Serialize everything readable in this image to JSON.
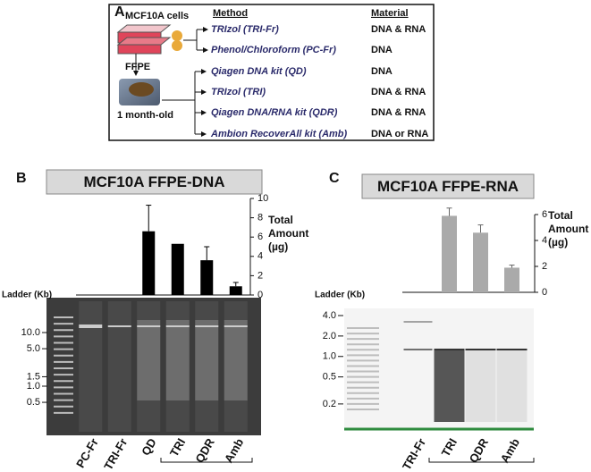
{
  "panel_a": {
    "label": "A",
    "source": "MCF10A cells",
    "ffpe": "FFPE",
    "age": "1 month-old",
    "method_header": "Method",
    "material_header": "Material",
    "rows": [
      {
        "method": "TRIzol (TRI-Fr)",
        "material": "DNA & RNA"
      },
      {
        "method": "Phenol/Chloroform (PC-Fr)",
        "material": "DNA"
      },
      {
        "method": "Qiagen DNA kit (QD)",
        "material": "DNA"
      },
      {
        "method": "TRIzol (TRI)",
        "material": "DNA & RNA"
      },
      {
        "method": "Qiagen DNA/RNA kit (QDR)",
        "material": "DNA & RNA"
      },
      {
        "method": "Ambion RecoverAll kit (Amb)",
        "material": "DNA or RNA"
      }
    ]
  },
  "chart_data": [
    {
      "type": "bar",
      "panel": "B",
      "title": "MCF10A FFPE-DNA",
      "categories": [
        "PC-Fr",
        "TRI-Fr",
        "QD",
        "TRI",
        "QDR",
        "Amb"
      ],
      "values": [
        null,
        null,
        6.6,
        5.3,
        3.6,
        0.9
      ],
      "errors": [
        null,
        null,
        2.7,
        null,
        1.4,
        0.4
      ],
      "color": "#000000",
      "ylim": [
        0,
        10
      ],
      "yticks": [
        0,
        2,
        4,
        6,
        8,
        10
      ],
      "ylabel": [
        "Total",
        "Amount",
        "(µg)"
      ],
      "ladder_label": "Ladder (Kb)",
      "ladder": [
        {
          "value": 10,
          "label": "10.0"
        },
        {
          "value": 5,
          "label": "5.0"
        },
        {
          "value": 1.5,
          "label": "1.5"
        },
        {
          "value": 1,
          "label": "1.0"
        },
        {
          "value": 0.5,
          "label": "0.5"
        }
      ]
    },
    {
      "type": "bar",
      "panel": "C",
      "title": "MCF10A FFPE-RNA",
      "categories": [
        "TRI-Fr",
        "TRI",
        "QDR",
        "Amb"
      ],
      "values": [
        null,
        5.9,
        4.6,
        1.9
      ],
      "errors": [
        null,
        0.6,
        0.6,
        0.2
      ],
      "color": "#aaaaaa",
      "ylim": [
        0,
        6
      ],
      "yticks": [
        0,
        2,
        4,
        6
      ],
      "ylabel": [
        "Total",
        "Amount",
        "(µg)"
      ],
      "ladder_label": "Ladder (Kb)",
      "ladder": [
        {
          "value": 4,
          "label": "4.0"
        },
        {
          "value": 2,
          "label": "2.0"
        },
        {
          "value": 1,
          "label": "1.0"
        },
        {
          "value": 0.5,
          "label": "0.5"
        },
        {
          "value": 0.2,
          "label": "0.2"
        }
      ]
    }
  ]
}
